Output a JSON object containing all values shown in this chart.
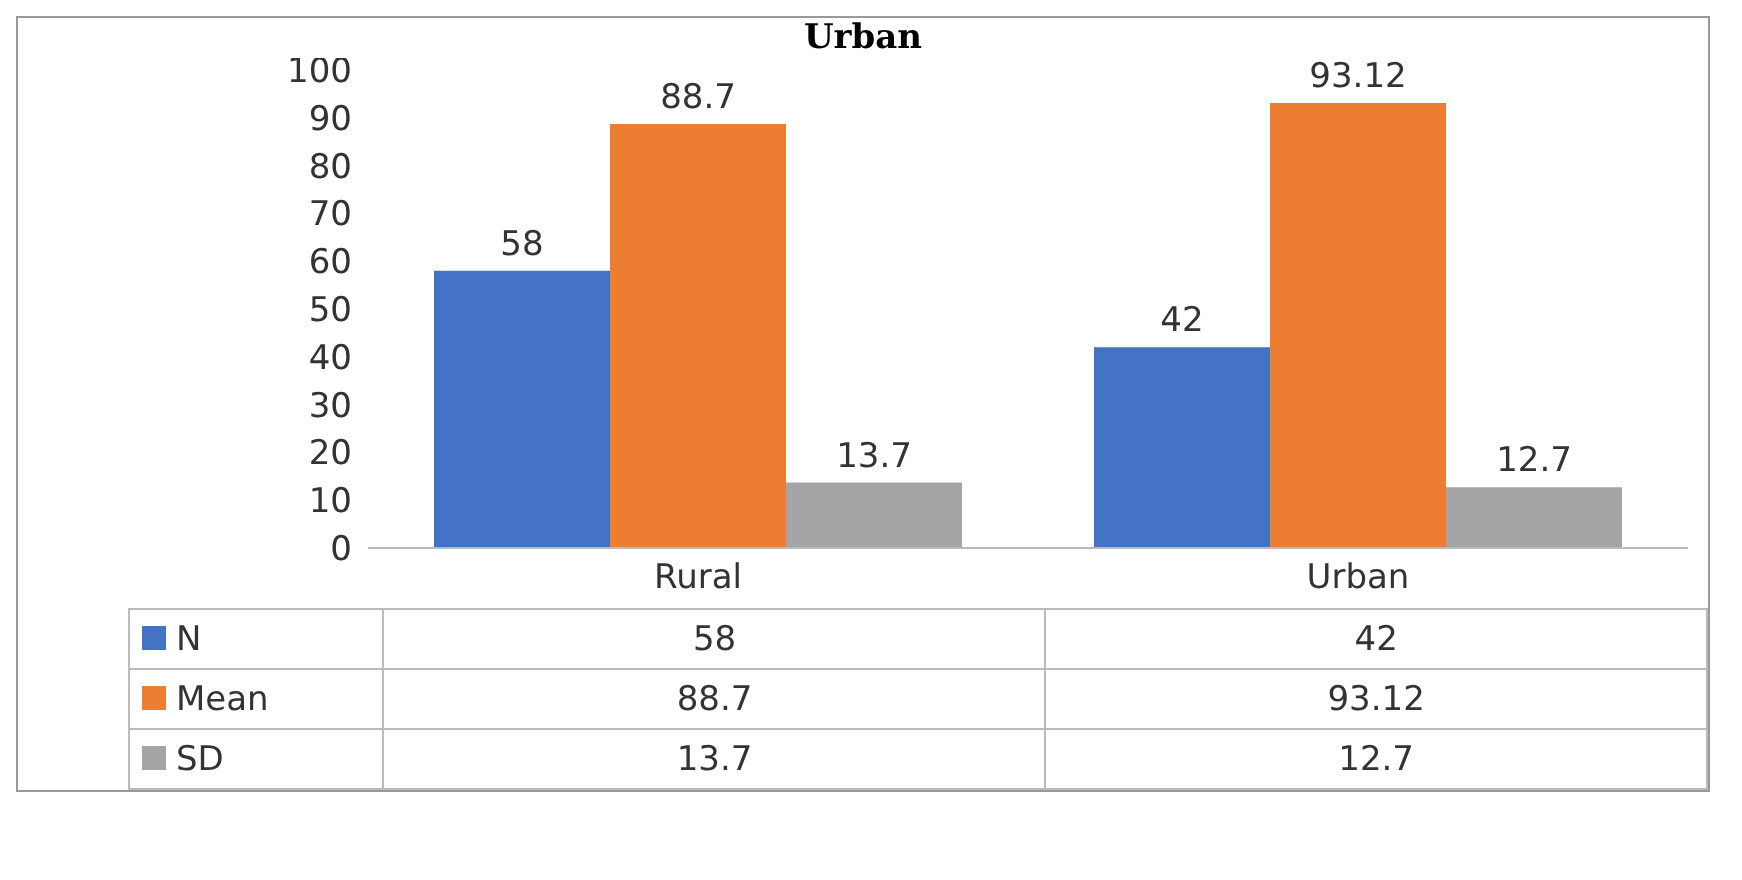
{
  "chart_data": {
    "type": "bar",
    "title": "Urban",
    "categories": [
      "Rural",
      "Urban"
    ],
    "series": [
      {
        "name": "N",
        "color": "#4472c4",
        "values": [
          58,
          42
        ],
        "value_labels": [
          "58",
          "42"
        ]
      },
      {
        "name": "Mean",
        "color": "#ed7d31",
        "values": [
          88.7,
          93.12
        ],
        "value_labels": [
          "88.7",
          "93.12"
        ]
      },
      {
        "name": "SD",
        "color": "#a5a5a5",
        "values": [
          13.7,
          12.7
        ],
        "value_labels": [
          "13.7",
          "12.7"
        ]
      }
    ],
    "annotations": [
      "58",
      "88.7",
      "13.7",
      "42",
      "93.12",
      "12.7"
    ],
    "ylim": [
      0,
      100
    ],
    "yticks": [
      0,
      10,
      20,
      30,
      40,
      50,
      60,
      70,
      80,
      90,
      100
    ],
    "legend": "bottom",
    "data_labels": true
  }
}
